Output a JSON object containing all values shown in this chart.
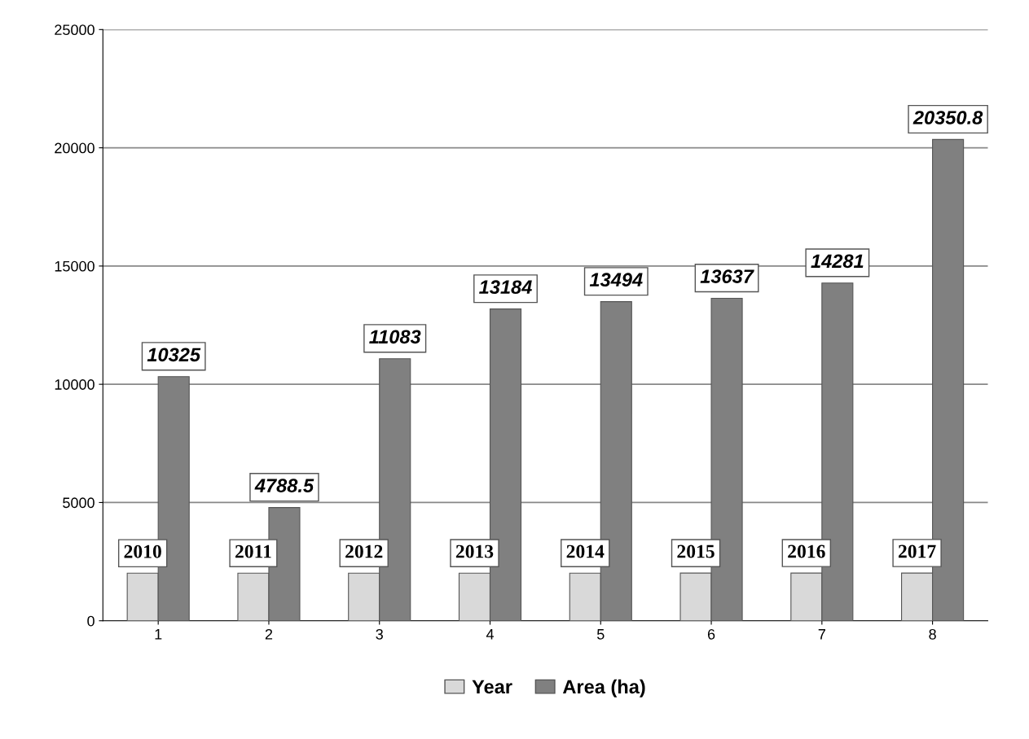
{
  "chart_data": {
    "type": "bar",
    "categories": [
      "1",
      "2",
      "3",
      "4",
      "5",
      "6",
      "7",
      "8"
    ],
    "series": [
      {
        "name": "Year",
        "color": "#d9d9d9",
        "values": [
          2010,
          2011,
          2012,
          2013,
          2014,
          2015,
          2016,
          2017
        ]
      },
      {
        "name": "Area (ha)",
        "color": "#808080",
        "values": [
          10325,
          4788.5,
          11083,
          13184,
          13494,
          13637,
          14281,
          20350.8
        ]
      }
    ],
    "ylim": [
      0,
      25000
    ],
    "yticks": [
      0,
      5000,
      10000,
      15000,
      20000,
      25000
    ],
    "grid": "y",
    "legend": "bottom",
    "data_labels": true
  }
}
